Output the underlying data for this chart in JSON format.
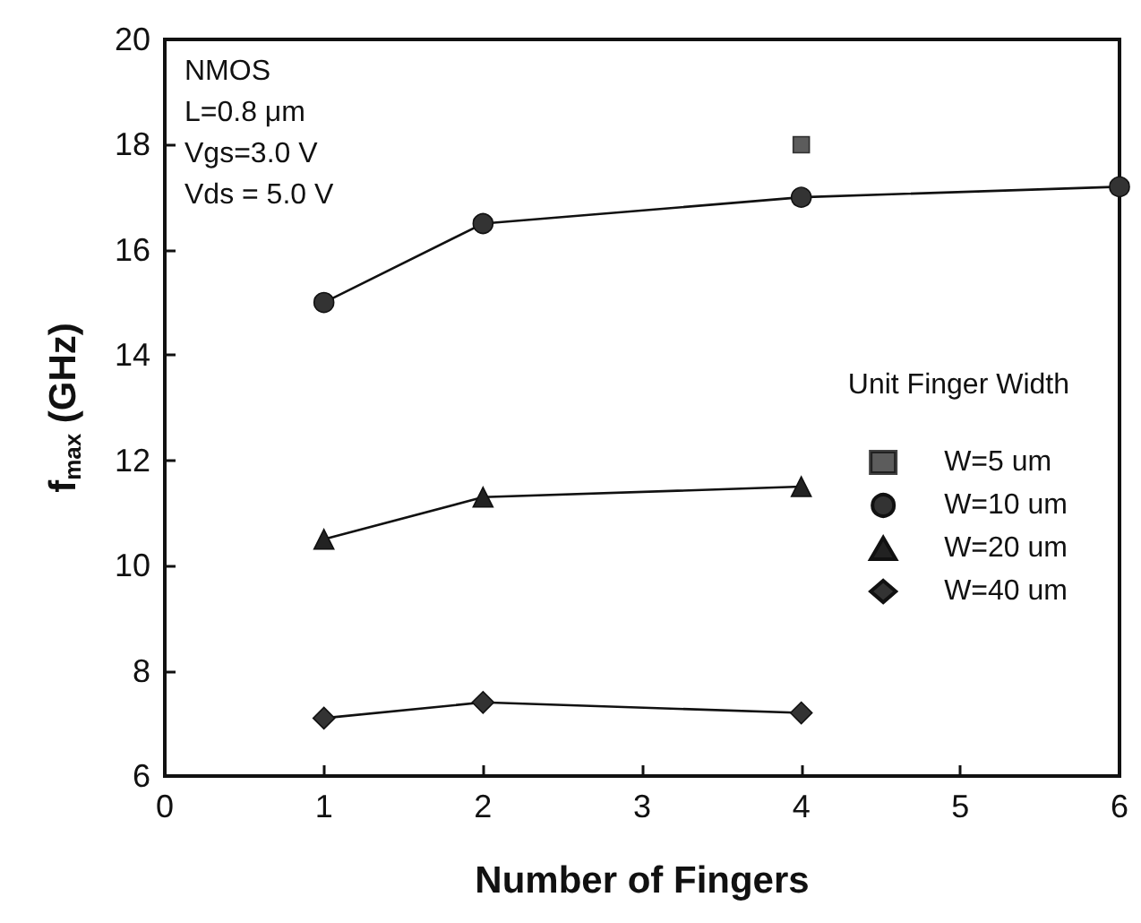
{
  "chart_data": {
    "type": "line",
    "xlabel": "Number of Fingers",
    "ylabel": "f$_{max}$ (GHz)",
    "legend_title": "Unit Finger Width",
    "annotations": [
      "NMOS",
      "L=0.8 μm",
      "Vgs=3.0 V",
      "Vds = 5.0 V"
    ],
    "series": [
      {
        "name": "W=5 um",
        "type": "scatter",
        "marker": "square",
        "color": "#333333",
        "x": [
          4
        ],
        "values": [
          18
        ]
      },
      {
        "name": "W=10 um",
        "marker": "circle",
        "color": "#333333",
        "x": [
          1,
          2,
          4,
          6
        ],
        "values": [
          15,
          16.5,
          17,
          17.2
        ]
      },
      {
        "name": "W=20 um",
        "marker": "triangle",
        "color": "#222222",
        "x": [
          1,
          2,
          4
        ],
        "values": [
          10.5,
          11.3,
          11.5
        ]
      },
      {
        "name": "W=40 um",
        "marker": "diamond",
        "color": "#333333",
        "x": [
          1,
          2,
          4
        ],
        "values": [
          7.1,
          7.4,
          7.2
        ]
      }
    ],
    "xlim": [
      0,
      6
    ],
    "xticks": [
      0,
      1,
      2,
      3,
      4,
      5,
      6
    ],
    "ylim": [
      6,
      20
    ],
    "yticks": [
      6,
      8,
      10,
      12,
      14,
      16,
      18,
      20
    ],
    "grid": false,
    "legend": "right",
    "line_style": "solid"
  }
}
